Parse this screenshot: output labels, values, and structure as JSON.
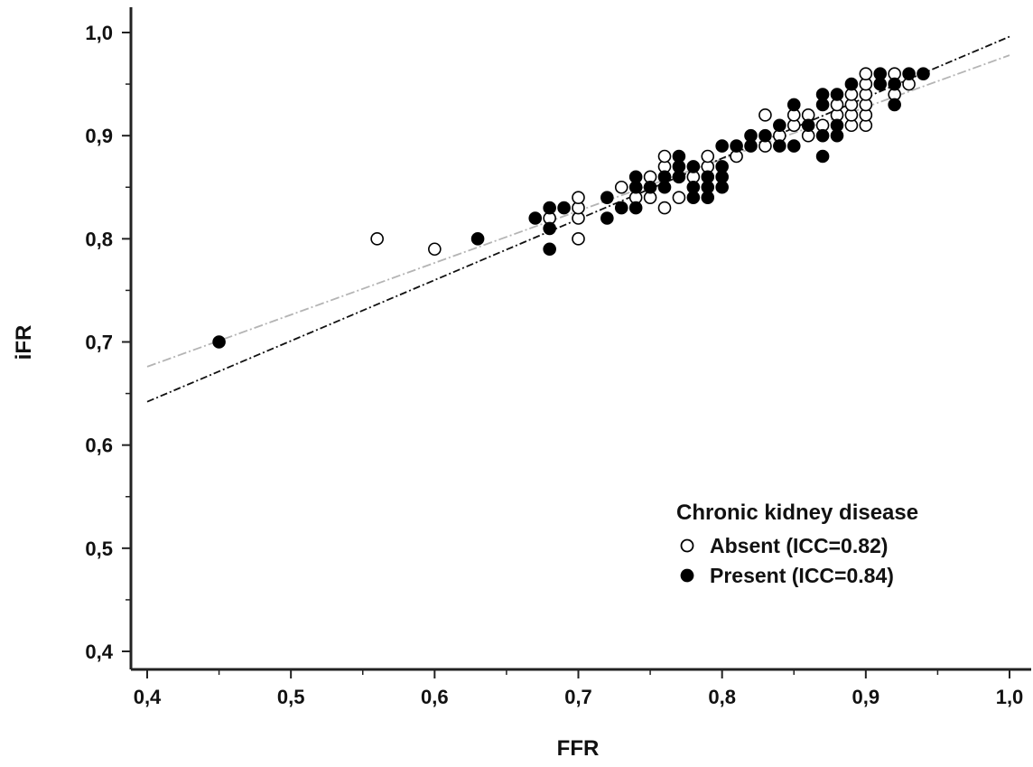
{
  "chart_data": {
    "type": "scatter",
    "xlabel": "FFR",
    "ylabel": "iFR",
    "xlim": [
      0.4,
      1.0
    ],
    "ylim": [
      0.4,
      1.0
    ],
    "x_ticks": [
      {
        "value": 0.4,
        "label": "0,4"
      },
      {
        "value": 0.5,
        "label": "0,5"
      },
      {
        "value": 0.6,
        "label": "0,6"
      },
      {
        "value": 0.7,
        "label": "0,7"
      },
      {
        "value": 0.8,
        "label": "0,8"
      },
      {
        "value": 0.9,
        "label": "0,9"
      },
      {
        "value": 1.0,
        "label": "1,0"
      }
    ],
    "y_ticks": [
      {
        "value": 0.4,
        "label": "0,4"
      },
      {
        "value": 0.5,
        "label": "0,5"
      },
      {
        "value": 0.6,
        "label": "0,6"
      },
      {
        "value": 0.7,
        "label": "0,7"
      },
      {
        "value": 0.8,
        "label": "0,8"
      },
      {
        "value": 0.9,
        "label": "0,9"
      },
      {
        "value": 1.0,
        "label": "1,0"
      }
    ],
    "legend": {
      "title": "Chronic kidney disease",
      "placement": "bottom-right"
    },
    "series": [
      {
        "name": "Absent (ICC=0.82)",
        "marker": "open-circle",
        "color": "#000000",
        "points": [
          [
            0.56,
            0.8
          ],
          [
            0.6,
            0.79
          ],
          [
            0.68,
            0.82
          ],
          [
            0.7,
            0.8
          ],
          [
            0.7,
            0.82
          ],
          [
            0.7,
            0.83
          ],
          [
            0.7,
            0.84
          ],
          [
            0.73,
            0.85
          ],
          [
            0.74,
            0.84
          ],
          [
            0.75,
            0.84
          ],
          [
            0.75,
            0.86
          ],
          [
            0.76,
            0.83
          ],
          [
            0.76,
            0.87
          ],
          [
            0.76,
            0.88
          ],
          [
            0.77,
            0.84
          ],
          [
            0.78,
            0.86
          ],
          [
            0.79,
            0.87
          ],
          [
            0.79,
            0.88
          ],
          [
            0.81,
            0.88
          ],
          [
            0.83,
            0.89
          ],
          [
            0.83,
            0.92
          ],
          [
            0.84,
            0.9
          ],
          [
            0.85,
            0.91
          ],
          [
            0.85,
            0.92
          ],
          [
            0.86,
            0.9
          ],
          [
            0.86,
            0.92
          ],
          [
            0.87,
            0.91
          ],
          [
            0.88,
            0.92
          ],
          [
            0.88,
            0.93
          ],
          [
            0.89,
            0.91
          ],
          [
            0.89,
            0.92
          ],
          [
            0.89,
            0.93
          ],
          [
            0.89,
            0.94
          ],
          [
            0.9,
            0.91
          ],
          [
            0.9,
            0.92
          ],
          [
            0.9,
            0.93
          ],
          [
            0.9,
            0.94
          ],
          [
            0.9,
            0.95
          ],
          [
            0.9,
            0.96
          ],
          [
            0.92,
            0.94
          ],
          [
            0.92,
            0.96
          ],
          [
            0.93,
            0.95
          ]
        ],
        "fit_line": {
          "color": "#b4b4b4",
          "start": [
            0.4,
            0.676
          ],
          "end": [
            1.0,
            0.978
          ]
        }
      },
      {
        "name": "Present (ICC=0.84)",
        "marker": "filled-circle",
        "color": "#000000",
        "points": [
          [
            0.45,
            0.7
          ],
          [
            0.63,
            0.8
          ],
          [
            0.67,
            0.82
          ],
          [
            0.68,
            0.79
          ],
          [
            0.68,
            0.81
          ],
          [
            0.68,
            0.83
          ],
          [
            0.69,
            0.83
          ],
          [
            0.72,
            0.82
          ],
          [
            0.72,
            0.84
          ],
          [
            0.73,
            0.83
          ],
          [
            0.74,
            0.83
          ],
          [
            0.74,
            0.85
          ],
          [
            0.74,
            0.86
          ],
          [
            0.75,
            0.85
          ],
          [
            0.76,
            0.85
          ],
          [
            0.76,
            0.86
          ],
          [
            0.77,
            0.86
          ],
          [
            0.77,
            0.87
          ],
          [
            0.77,
            0.88
          ],
          [
            0.78,
            0.84
          ],
          [
            0.78,
            0.85
          ],
          [
            0.78,
            0.87
          ],
          [
            0.79,
            0.84
          ],
          [
            0.79,
            0.85
          ],
          [
            0.79,
            0.86
          ],
          [
            0.8,
            0.85
          ],
          [
            0.8,
            0.86
          ],
          [
            0.8,
            0.87
          ],
          [
            0.8,
            0.89
          ],
          [
            0.81,
            0.89
          ],
          [
            0.82,
            0.89
          ],
          [
            0.82,
            0.9
          ],
          [
            0.83,
            0.9
          ],
          [
            0.84,
            0.89
          ],
          [
            0.84,
            0.91
          ],
          [
            0.85,
            0.89
          ],
          [
            0.85,
            0.93
          ],
          [
            0.86,
            0.91
          ],
          [
            0.87,
            0.88
          ],
          [
            0.87,
            0.9
          ],
          [
            0.87,
            0.93
          ],
          [
            0.87,
            0.94
          ],
          [
            0.88,
            0.9
          ],
          [
            0.88,
            0.91
          ],
          [
            0.88,
            0.94
          ],
          [
            0.89,
            0.95
          ],
          [
            0.91,
            0.95
          ],
          [
            0.91,
            0.96
          ],
          [
            0.92,
            0.93
          ],
          [
            0.92,
            0.95
          ],
          [
            0.93,
            0.96
          ],
          [
            0.94,
            0.96
          ]
        ],
        "fit_line": {
          "color": "#111111",
          "start": [
            0.4,
            0.642
          ],
          "end": [
            1.0,
            0.996
          ]
        }
      }
    ]
  }
}
